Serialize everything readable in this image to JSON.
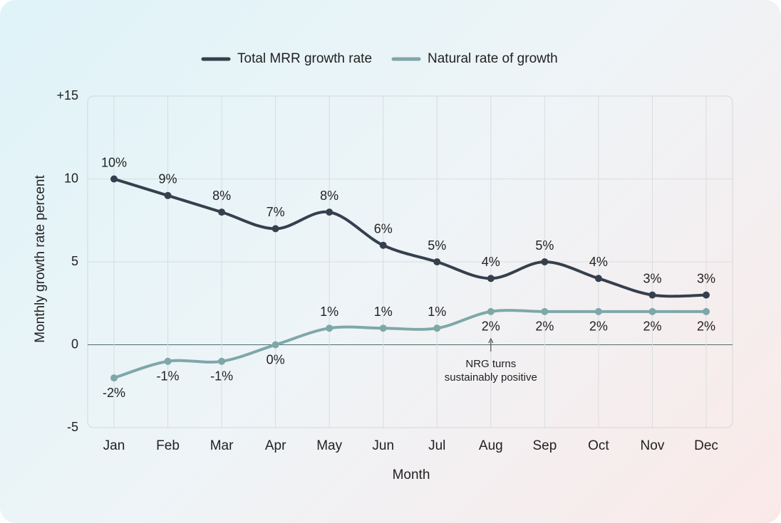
{
  "chart_data": {
    "type": "line",
    "categories": [
      "Jan",
      "Feb",
      "Mar",
      "Apr",
      "May",
      "Jun",
      "Jul",
      "Aug",
      "Sep",
      "Oct",
      "Nov",
      "Dec"
    ],
    "series": [
      {
        "name": "Total MRR growth rate",
        "color": "#353f4d",
        "values": [
          10,
          9,
          8,
          7,
          8,
          6,
          5,
          4,
          5,
          4,
          3,
          3
        ],
        "value_labels": [
          "10%",
          "9%",
          "8%",
          "7%",
          "8%",
          "6%",
          "5%",
          "4%",
          "5%",
          "4%",
          "3%",
          "3%"
        ]
      },
      {
        "name": "Natural rate of growth",
        "color": "#7ea7a9",
        "values": [
          -2,
          -1,
          -1,
          0,
          1,
          1,
          1,
          2,
          2,
          2,
          2,
          2
        ],
        "value_labels": [
          "-2%",
          "-1%",
          "-1%",
          "0%",
          "1%",
          "1%",
          "1%",
          "2%",
          "2%",
          "2%",
          "2%",
          "2%"
        ]
      }
    ],
    "xlabel": "Month",
    "ylabel": "Monthly growth rate percent",
    "ylim": [
      -5,
      15
    ],
    "yticks": [
      -5,
      0,
      5,
      10,
      {
        "value": 15,
        "label": "+15"
      }
    ],
    "grid": true,
    "annotation": {
      "lines": [
        "NRG turns",
        "sustainably positive"
      ]
    }
  }
}
